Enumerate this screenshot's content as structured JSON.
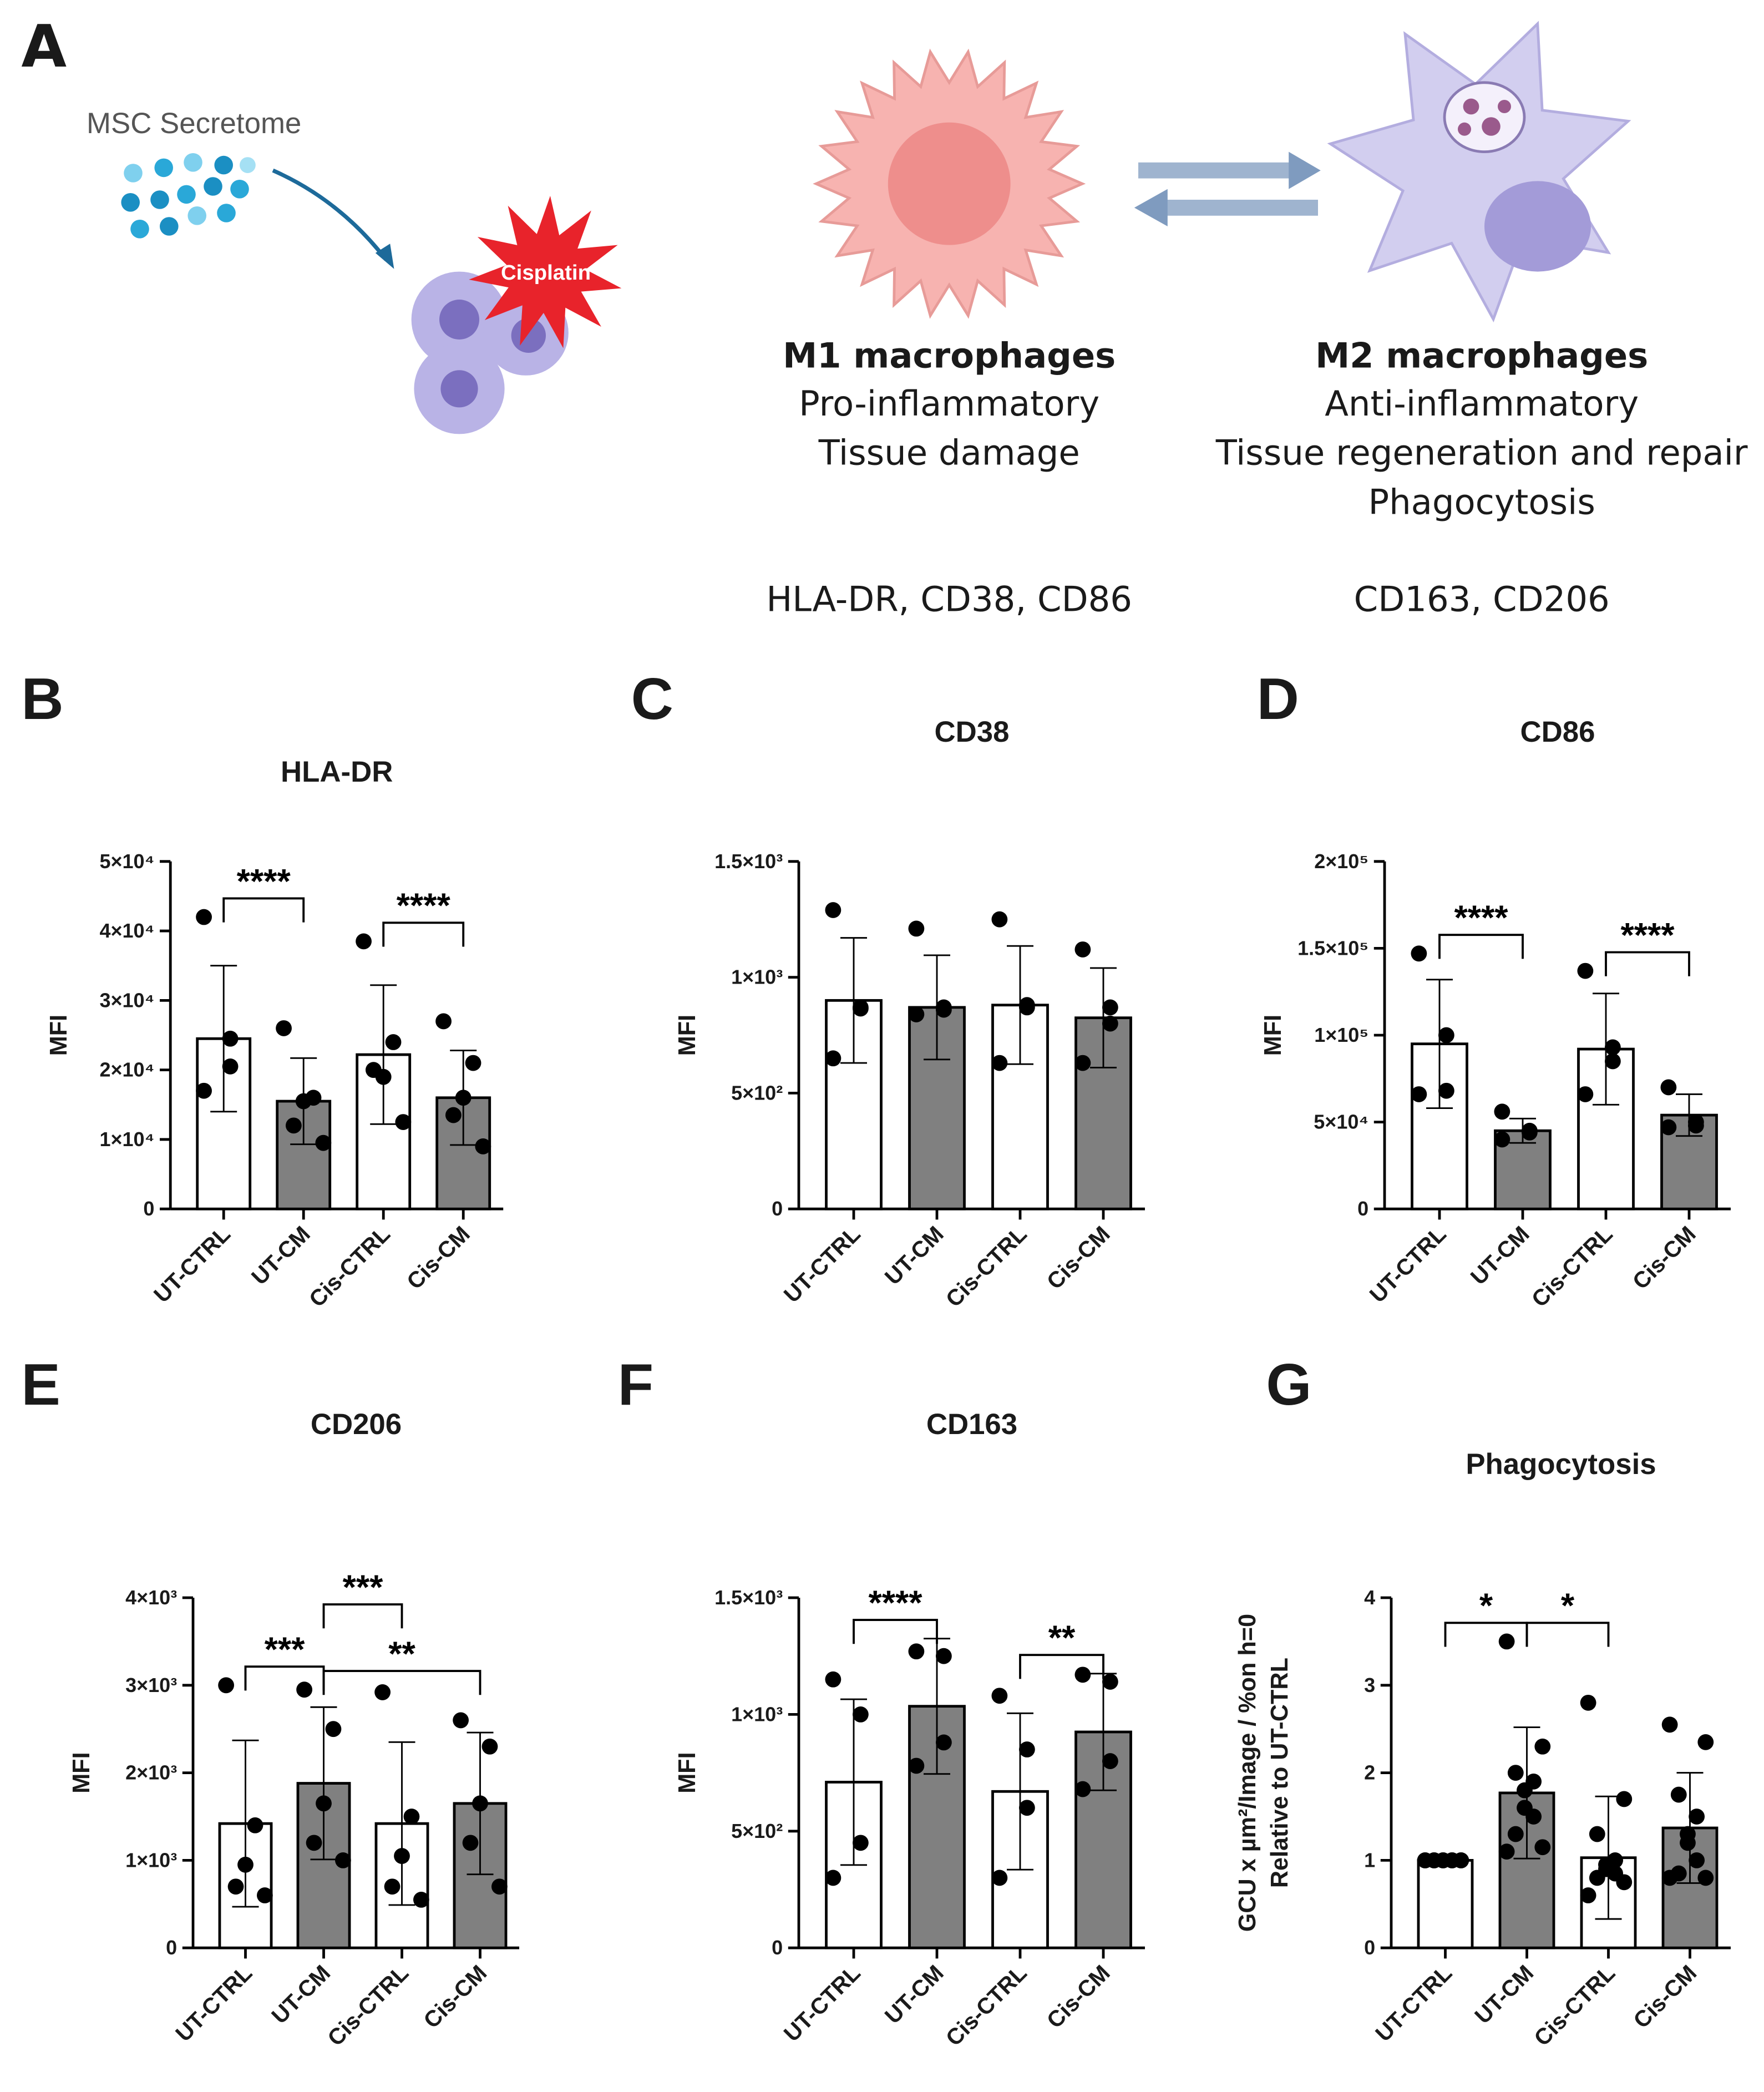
{
  "panel_a": {
    "label": "A",
    "secretome": "MSC Secretome",
    "drug": "Cisplatin",
    "m1": {
      "title": "M1 macrophages",
      "lines": [
        "Pro-inflammatory",
        "Tissue damage"
      ],
      "markers": "HLA-DR, CD38, CD86"
    },
    "m2": {
      "title": "M2 macrophages",
      "lines": [
        "Anti-inflammatory",
        "Tissue regeneration and repair",
        "Phagocytosis"
      ],
      "markers": "CD163, CD206"
    }
  },
  "chart_data": [
    {
      "panel": "B",
      "type": "bar",
      "title": "HLA-DR",
      "y_label": [
        "MFI"
      ],
      "categories": [
        "UT-CTRL",
        "UT-CM",
        "Cis-CTRL",
        "Cis-CM"
      ],
      "values": [
        24500,
        15500,
        22200,
        16000
      ],
      "errors": [
        10500,
        6200,
        10000,
        6800
      ],
      "points": [
        [
          42000,
          24500,
          20500,
          17000
        ],
        [
          26000,
          16000,
          15500,
          12000,
          9500
        ],
        [
          38500,
          24000,
          19000,
          20000,
          12500
        ],
        [
          27000,
          21000,
          16000,
          13500,
          9000
        ]
      ],
      "colors": [
        "#ffffff",
        "#808080",
        "#ffffff",
        "#808080"
      ],
      "point_color": "#000000",
      "ylim": [
        0,
        50000
      ],
      "yticks": [
        0,
        {
          "value": 10000,
          "label": "1×10⁴"
        },
        {
          "value": 20000,
          "label": "2×10⁴"
        },
        {
          "value": 30000,
          "label": "3×10⁴"
        },
        {
          "value": 40000,
          "label": "4×10⁴"
        },
        {
          "value": 50000,
          "label": "5×10⁴"
        }
      ],
      "significance": [
        {
          "text": "****",
          "categories": [
            "UT-CTRL",
            "UT-CM"
          ]
        },
        {
          "text": "****",
          "categories": [
            "Cis-CTRL",
            "Cis-CM"
          ]
        }
      ]
    },
    {
      "panel": "C",
      "type": "bar",
      "title": "CD38",
      "y_label": [
        "MFI"
      ],
      "categories": [
        "UT-CTRL",
        "UT-CM",
        "Cis-CTRL",
        "Cis-CM"
      ],
      "values": [
        900,
        870,
        880,
        825
      ],
      "errors": [
        270,
        225,
        255,
        215
      ],
      "points": [
        [
          1290,
          870,
          865,
          650
        ],
        [
          1210,
          870,
          860,
          840
        ],
        [
          1250,
          880,
          870,
          630
        ],
        [
          1120,
          870,
          800,
          630
        ]
      ],
      "colors": [
        "#ffffff",
        "#808080",
        "#ffffff",
        "#808080"
      ],
      "point_color": "#000000",
      "ylim": [
        0,
        1500
      ],
      "yticks": [
        0,
        {
          "value": 500,
          "label": "5×10²"
        },
        {
          "value": 1000,
          "label": "1×10³"
        },
        {
          "value": 1500,
          "label": "1.5×10³"
        }
      ],
      "significance": []
    },
    {
      "panel": "D",
      "type": "bar",
      "title": "CD86",
      "y_label": [
        "MFI"
      ],
      "categories": [
        "UT-CTRL",
        "UT-CM",
        "Cis-CTRL",
        "Cis-CM"
      ],
      "values": [
        95000,
        45000,
        92000,
        54000
      ],
      "errors": [
        37000,
        7000,
        32000,
        12000
      ],
      "points": [
        [
          147000,
          100000,
          68000,
          66000
        ],
        [
          56000,
          45000,
          44000,
          40000
        ],
        [
          137000,
          93000,
          85000,
          66000
        ],
        [
          70000,
          50000,
          48000,
          47000
        ]
      ],
      "colors": [
        "#ffffff",
        "#808080",
        "#ffffff",
        "#808080"
      ],
      "point_color": "#000000",
      "ylim": [
        0,
        200000
      ],
      "yticks": [
        0,
        {
          "value": 50000,
          "label": "5×10⁴"
        },
        {
          "value": 100000,
          "label": "1×10⁵"
        },
        {
          "value": 150000,
          "label": "1.5×10⁵"
        },
        {
          "value": 200000,
          "label": "2×10⁵"
        }
      ],
      "significance": [
        {
          "text": "****",
          "categories": [
            "UT-CTRL",
            "UT-CM"
          ]
        },
        {
          "text": "****",
          "categories": [
            "Cis-CTRL",
            "Cis-CM"
          ]
        }
      ]
    },
    {
      "panel": "E",
      "type": "bar",
      "title": "CD206",
      "y_label": [
        "MFI"
      ],
      "categories": [
        "UT-CTRL",
        "UT-CM",
        "Cis-CTRL",
        "Cis-CM"
      ],
      "values": [
        1420,
        1880,
        1420,
        1650
      ],
      "errors": [
        950,
        870,
        930,
        810
      ],
      "points": [
        [
          3000,
          1400,
          950,
          700,
          600
        ],
        [
          2950,
          2500,
          1650,
          1200,
          1000
        ],
        [
          2920,
          1500,
          1050,
          700,
          550
        ],
        [
          2600,
          2300,
          1650,
          1200,
          700
        ]
      ],
      "colors": [
        "#ffffff",
        "#808080",
        "#ffffff",
        "#808080"
      ],
      "point_color": "#000000",
      "ylim": [
        0,
        4000
      ],
      "yticks": [
        0,
        {
          "value": 1000,
          "label": "1×10³"
        },
        {
          "value": 2000,
          "label": "2×10³"
        },
        {
          "value": 3000,
          "label": "3×10³"
        },
        {
          "value": 4000,
          "label": "4×10³"
        }
      ],
      "significance": [
        {
          "text": "***",
          "categories": [
            "UT-CTRL",
            "UT-CM"
          ]
        },
        {
          "text": "**",
          "categories": [
            "UT-CM",
            "Cis-CM"
          ]
        },
        {
          "text": "***",
          "categories": [
            "UT-CM",
            "Cis-CTRL"
          ]
        }
      ]
    },
    {
      "panel": "F",
      "type": "bar",
      "title": "CD163",
      "y_label": [
        "MFI"
      ],
      "categories": [
        "UT-CTRL",
        "UT-CM",
        "Cis-CTRL",
        "Cis-CM"
      ],
      "values": [
        710,
        1035,
        670,
        925
      ],
      "errors": [
        355,
        290,
        335,
        250
      ],
      "points": [
        [
          1150,
          1000,
          450,
          300
        ],
        [
          1270,
          1250,
          880,
          780
        ],
        [
          1080,
          850,
          600,
          300
        ],
        [
          1170,
          1140,
          800,
          680
        ]
      ],
      "colors": [
        "#ffffff",
        "#808080",
        "#ffffff",
        "#808080"
      ],
      "point_color": "#000000",
      "ylim": [
        0,
        1500
      ],
      "yticks": [
        0,
        {
          "value": 500,
          "label": "5×10²"
        },
        {
          "value": 1000,
          "label": "1×10³"
        },
        {
          "value": 1500,
          "label": "1.5×10³"
        }
      ],
      "significance": [
        {
          "text": "****",
          "categories": [
            "UT-CTRL",
            "UT-CM"
          ]
        },
        {
          "text": "**",
          "categories": [
            "Cis-CTRL",
            "Cis-CM"
          ]
        }
      ]
    },
    {
      "panel": "G",
      "type": "bar",
      "title": "Phagocytosis",
      "y_label": [
        "GCU x µm²/Image / %on h=0",
        "Relative to UT-CTRL"
      ],
      "categories": [
        "UT-CTRL",
        "UT-CM",
        "Cis-CTRL",
        "Cis-CM"
      ],
      "values": [
        1.0,
        1.77,
        1.03,
        1.37
      ],
      "errors": [
        0,
        0.75,
        0.7,
        0.63
      ],
      "points": [
        [
          1,
          1,
          1,
          1,
          1,
          1,
          1,
          1,
          1,
          1
        ],
        [
          3.5,
          2.3,
          2.0,
          1.9,
          1.8,
          1.6,
          1.5,
          1.3,
          1.15,
          1.1
        ],
        [
          2.8,
          1.7,
          1.3,
          1.0,
          0.95,
          0.9,
          0.85,
          0.8,
          0.75,
          0.6
        ],
        [
          2.55,
          2.35,
          1.75,
          1.5,
          1.3,
          1.2,
          1.0,
          0.85,
          0.8,
          0.8
        ]
      ],
      "colors": [
        "#ffffff",
        "#808080",
        "#ffffff",
        "#808080"
      ],
      "point_color": "#000000",
      "ylim": [
        0,
        4
      ],
      "yticks": [
        0,
        1,
        2,
        3,
        4
      ],
      "significance": [
        {
          "text": "*",
          "categories": [
            "UT-CTRL",
            "UT-CM"
          ]
        },
        {
          "text": "*",
          "categories": [
            "UT-CM",
            "Cis-CTRL"
          ]
        }
      ]
    }
  ]
}
